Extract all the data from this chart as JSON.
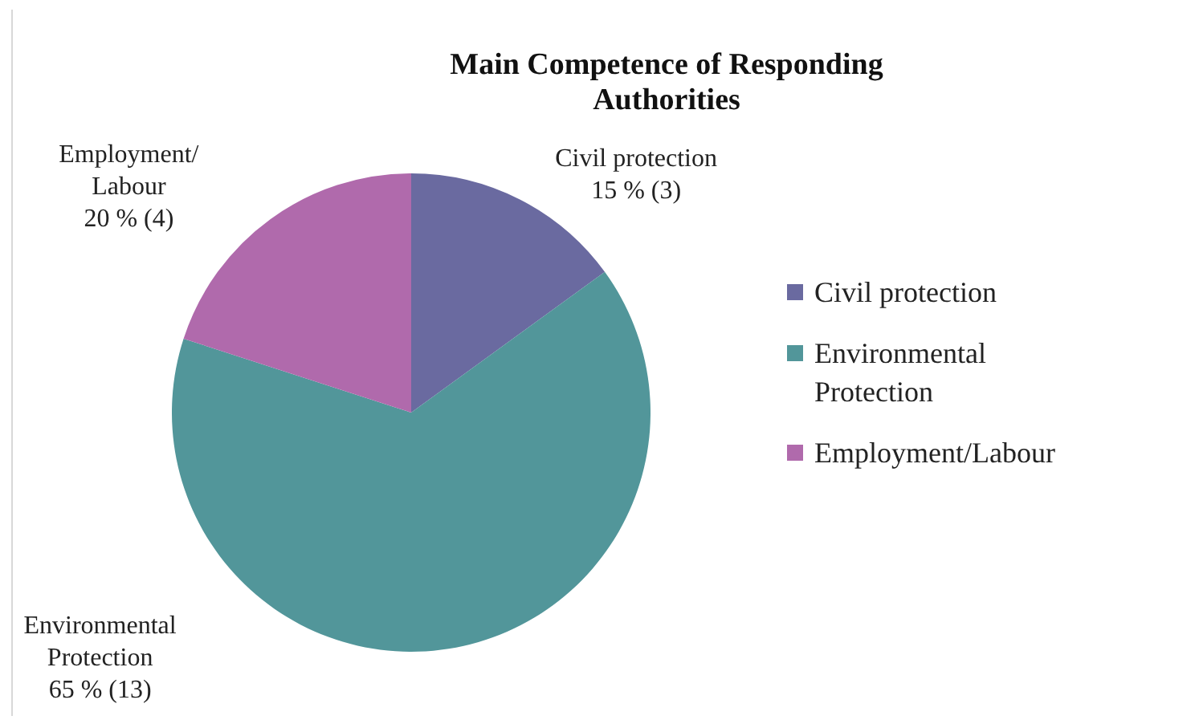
{
  "chart_data": {
    "type": "pie",
    "title": "Main Competence of Responding Authorities",
    "categories": [
      "Civil protection",
      "Environmental Protection",
      "Employment/Labour"
    ],
    "values": [
      3,
      13,
      4
    ],
    "value_labels": [
      "15 % (3)",
      "65 % (13)",
      "20 % (4)"
    ],
    "colors": [
      "#6a6aa0",
      "#52969a",
      "#b06aac"
    ],
    "legend": "right"
  }
}
